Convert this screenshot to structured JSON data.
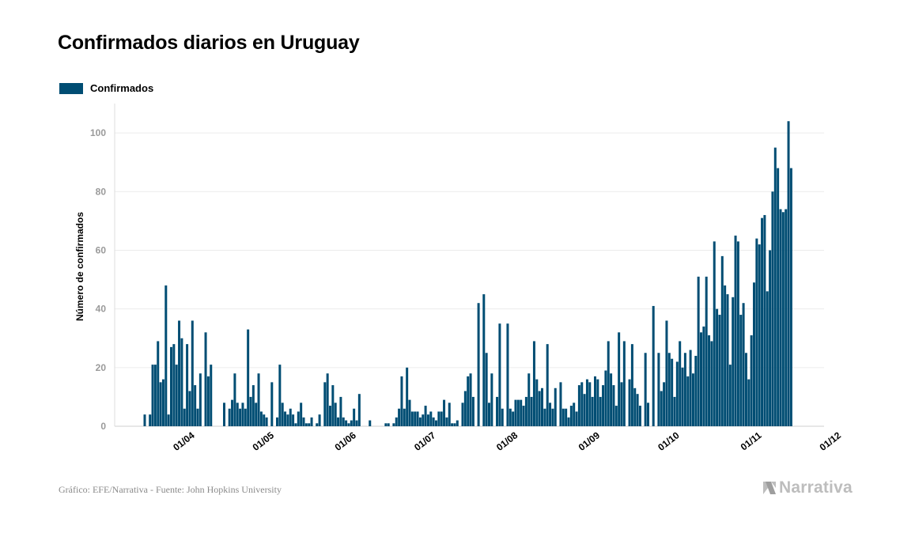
{
  "chart_data": {
    "type": "bar",
    "title": "Confirmados diarios en Uruguay",
    "ylabel": "Número de confirmados",
    "ylim": [
      0,
      110
    ],
    "yticks": [
      0,
      20,
      40,
      60,
      80,
      100
    ],
    "grid": true,
    "legend_position": "top-left",
    "x_tick_labels": [
      "01/04",
      "01/05",
      "01/06",
      "01/07",
      "01/08",
      "01/09",
      "01/10",
      "01/11",
      "01/12"
    ],
    "x_start": "13/03",
    "series": [
      {
        "name": "Confirmados",
        "color": "#004d73",
        "values": [
          4,
          0,
          4,
          21,
          21,
          29,
          15,
          16,
          48,
          4,
          27,
          28,
          21,
          36,
          30,
          6,
          28,
          12,
          36,
          14,
          6,
          18,
          0,
          32,
          17,
          21,
          0,
          0,
          0,
          0,
          8,
          0,
          6,
          9,
          18,
          8,
          6,
          8,
          6,
          33,
          10,
          14,
          8,
          18,
          5,
          4,
          3,
          0,
          15,
          0,
          3,
          21,
          8,
          5,
          4,
          6,
          4,
          1,
          5,
          8,
          3,
          1,
          1,
          3,
          0,
          1,
          4,
          0,
          15,
          18,
          7,
          14,
          8,
          3,
          10,
          3,
          2,
          1,
          2,
          6,
          2,
          11,
          0,
          0,
          0,
          2,
          0,
          0,
          0,
          0,
          0,
          1,
          1,
          0,
          1,
          3,
          6,
          17,
          6,
          20,
          9,
          5,
          5,
          5,
          3,
          4,
          7,
          4,
          5,
          3,
          2,
          5,
          5,
          9,
          3,
          8,
          1,
          1,
          2,
          0,
          8,
          12,
          17,
          18,
          10,
          0,
          42,
          0,
          45,
          25,
          8,
          18,
          0,
          10,
          35,
          6,
          0,
          35,
          6,
          5,
          9,
          9,
          9,
          7,
          10,
          18,
          10,
          29,
          16,
          12,
          13,
          6,
          28,
          8,
          6,
          13,
          0,
          15,
          6,
          6,
          3,
          7,
          8,
          5,
          14,
          15,
          11,
          16,
          15,
          10,
          17,
          16,
          10,
          14,
          19,
          29,
          18,
          14,
          7,
          32,
          15,
          29,
          0,
          16,
          28,
          13,
          11,
          7,
          0,
          25,
          8,
          0,
          41,
          0,
          25,
          12,
          15,
          36,
          25,
          23,
          10,
          22,
          29,
          20,
          25,
          17,
          26,
          18,
          24,
          51,
          32,
          34,
          51,
          31,
          29,
          63,
          40,
          38,
          58,
          48,
          45,
          21,
          44,
          65,
          63,
          38,
          42,
          25,
          16,
          31,
          49,
          64,
          62,
          71,
          72,
          46,
          60,
          80,
          95,
          88,
          74,
          73,
          74,
          104,
          88
        ]
      }
    ],
    "footer_source": "Gráfico: EFE/Narrativa - Fuente: John Hopkins University",
    "brand": "Narrativa"
  }
}
